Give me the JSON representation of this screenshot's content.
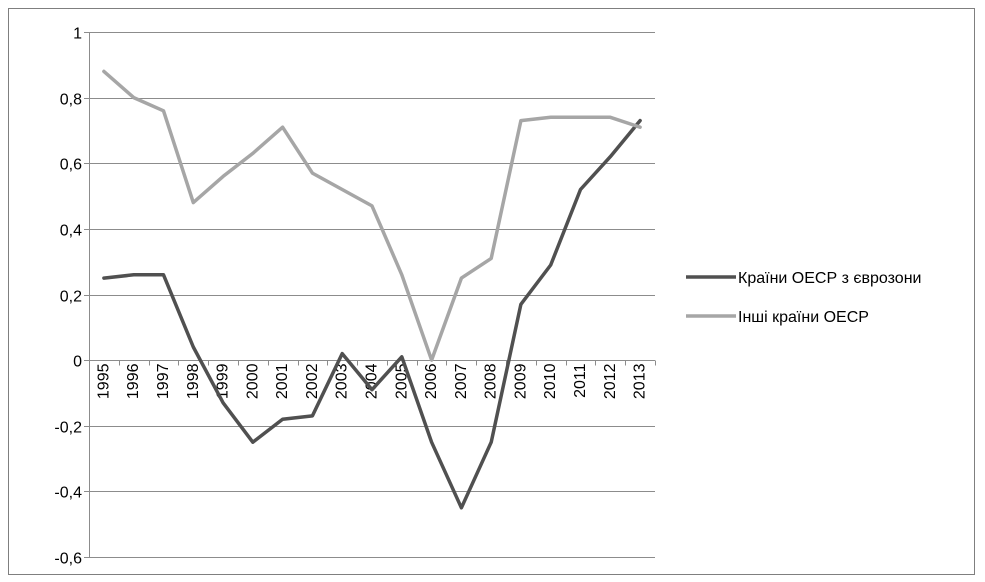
{
  "chart_data": {
    "type": "line",
    "title": "",
    "xlabel": "",
    "ylabel": "",
    "categories": [
      "1995",
      "1996",
      "1997",
      "1998",
      "1999",
      "2000",
      "2001",
      "2002",
      "2003",
      "2004",
      "2005",
      "2006",
      "2007",
      "2008",
      "2009",
      "2010",
      "2011",
      "2012",
      "2013"
    ],
    "ylim": [
      -0.6,
      1
    ],
    "yticks": [
      1,
      0.8,
      0.6,
      0.4,
      0.2,
      0,
      -0.2,
      -0.4,
      -0.6
    ],
    "ytick_labels": [
      "1",
      "0,8",
      "0,6",
      "0,4",
      "0,2",
      "0",
      "-0,2",
      "-0,4",
      "-0,6"
    ],
    "grid": true,
    "legend_position": "right",
    "series": [
      {
        "name": "Країни ОЕСР з єврозони",
        "color": "#505050",
        "values": [
          0.25,
          0.26,
          0.26,
          0.04,
          -0.13,
          -0.25,
          -0.18,
          -0.17,
          0.02,
          -0.09,
          0.01,
          -0.25,
          -0.45,
          -0.25,
          0.17,
          0.29,
          0.52,
          0.62,
          0.73
        ]
      },
      {
        "name": "Інші країни ОЕСР",
        "color": "#a6a6a6",
        "values": [
          0.88,
          0.8,
          0.76,
          0.48,
          0.56,
          0.63,
          0.71,
          0.57,
          0.52,
          0.47,
          0.26,
          0.0,
          0.25,
          0.31,
          0.73,
          0.74,
          0.74,
          0.74,
          0.71
        ]
      }
    ]
  }
}
